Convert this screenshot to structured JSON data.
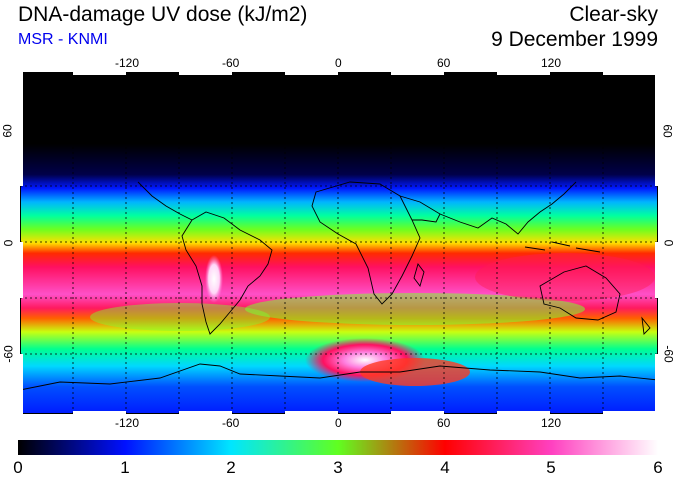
{
  "header": {
    "title": "DNA-damage UV dose (kJ/m2)",
    "source": "MSR - KNMI",
    "condition": "Clear-sky",
    "date": "9 December 1999"
  },
  "map": {
    "lon_ticks": [
      "-120",
      "-60",
      "0",
      "60",
      "120"
    ],
    "lat_ticks_left": [
      "60",
      "0",
      "-60"
    ],
    "lat_ticks_right": [
      "60",
      "0",
      "-60"
    ]
  },
  "colorbar": {
    "labels": [
      "0",
      "1",
      "2",
      "3",
      "4",
      "5",
      "6"
    ],
    "colors": [
      "#000000",
      "#0010ff",
      "#00e6ff",
      "#60ff20",
      "#ff0000",
      "#ff40c0",
      "#ffffff"
    ]
  }
}
